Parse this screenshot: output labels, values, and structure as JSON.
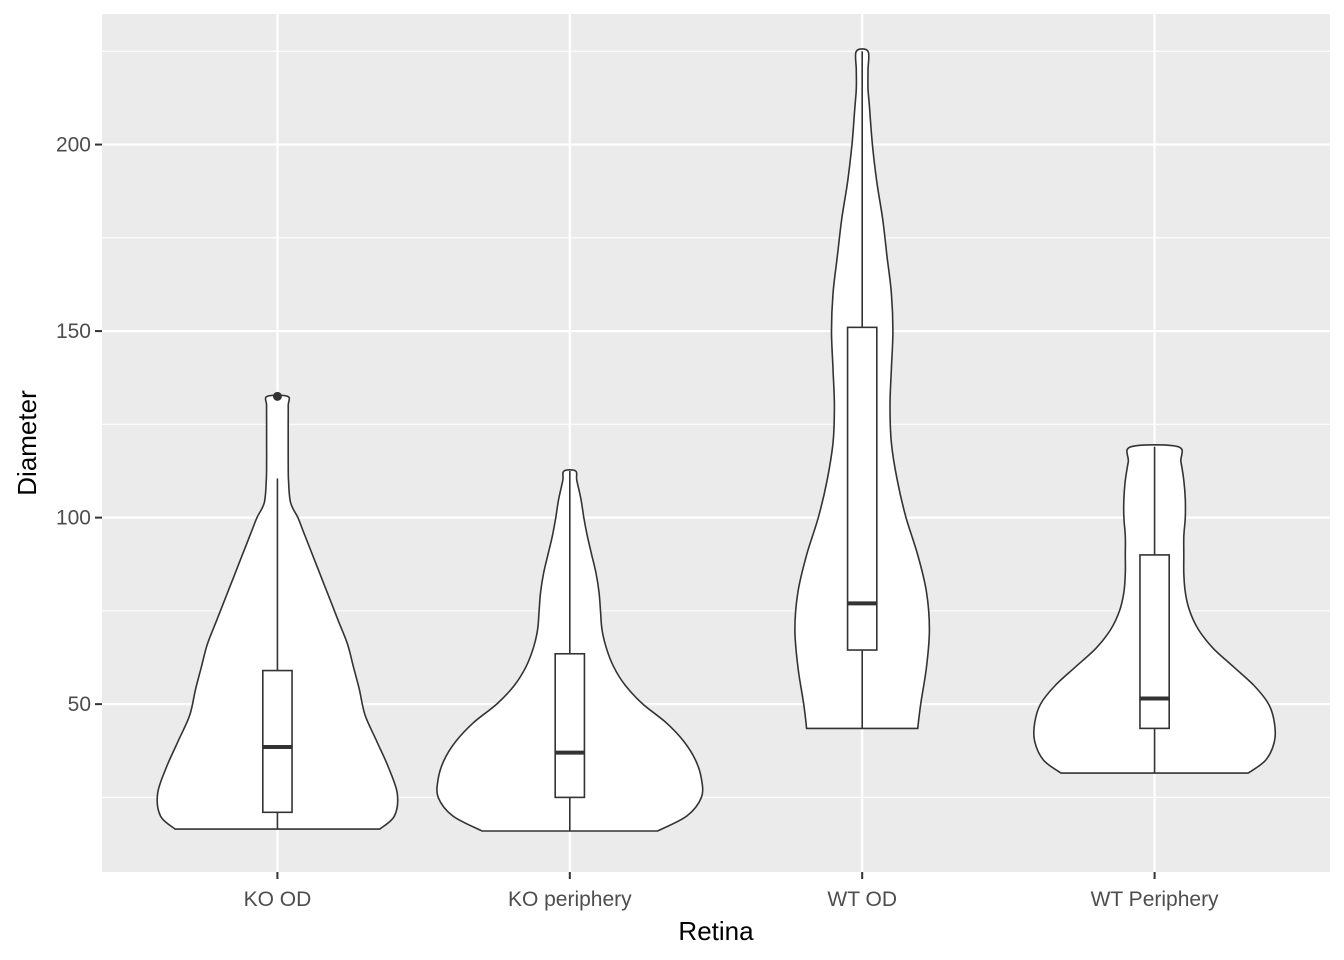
{
  "chart_data": {
    "type": "violin",
    "xlabel": "Retina",
    "ylabel": "Diameter",
    "categories": [
      "KO OD",
      "KO periphery",
      "WT OD",
      "WT Periphery"
    ],
    "ylim": [
      5,
      235
    ],
    "yticks": [
      50,
      100,
      150,
      200
    ],
    "ytick_labels": [
      "50",
      "100",
      "150",
      "200"
    ],
    "grid": true,
    "colors": {
      "panel": "#ebebeb",
      "grid": "#ffffff",
      "fill": "#ffffff",
      "stroke": "#333333"
    },
    "groups": [
      {
        "category": "KO OD",
        "box": {
          "q1": 21,
          "median": 38.5,
          "q3": 59,
          "whisker_low": 16.5,
          "whisker_high": 110.5
        },
        "outliers": [
          132.5
        ],
        "violin": {
          "y": [
            16.5,
            20,
            26,
            33,
            40,
            47,
            54,
            60,
            66,
            72,
            78,
            84,
            90,
            96,
            100,
            104,
            110,
            115,
            120,
            125,
            130,
            132.5
          ],
          "halfwidth": [
            0.35,
            0.4,
            0.41,
            0.38,
            0.34,
            0.3,
            0.28,
            0.26,
            0.24,
            0.21,
            0.18,
            0.15,
            0.12,
            0.09,
            0.07,
            0.045,
            0.038,
            0.037,
            0.037,
            0.037,
            0.037,
            0.035
          ]
        }
      },
      {
        "category": "KO periphery",
        "box": {
          "q1": 25,
          "median": 37,
          "q3": 63.5,
          "whisker_low": 16,
          "whisker_high": 112.5
        },
        "outliers": [],
        "violin": {
          "y": [
            16,
            20,
            25,
            30,
            35,
            40,
            45,
            50,
            55,
            60,
            65,
            70,
            75,
            80,
            85,
            90,
            95,
            100,
            105,
            110,
            112.5
          ],
          "halfwidth": [
            0.3,
            0.4,
            0.45,
            0.45,
            0.43,
            0.39,
            0.33,
            0.25,
            0.19,
            0.15,
            0.125,
            0.11,
            0.105,
            0.1,
            0.09,
            0.075,
            0.06,
            0.048,
            0.038,
            0.024,
            0.02
          ]
        }
      },
      {
        "category": "WT OD",
        "box": {
          "q1": 64.5,
          "median": 77,
          "q3": 151,
          "whisker_low": 43.5,
          "whisker_high": 225
        },
        "outliers": [],
        "violin": {
          "y": [
            43.5,
            50,
            60,
            70,
            80,
            90,
            100,
            110,
            120,
            130,
            140,
            150,
            160,
            170,
            180,
            190,
            200,
            210,
            215,
            220,
            225
          ],
          "halfwidth": [
            0.19,
            0.2,
            0.22,
            0.23,
            0.22,
            0.19,
            0.15,
            0.12,
            0.1,
            0.095,
            0.1,
            0.105,
            0.1,
            0.085,
            0.07,
            0.05,
            0.035,
            0.025,
            0.02,
            0.02,
            0.02
          ]
        }
      },
      {
        "category": "WT Periphery",
        "box": {
          "q1": 43.5,
          "median": 51.5,
          "q3": 90,
          "whisker_low": 31.5,
          "whisker_high": 119
        },
        "outliers": [],
        "violin": {
          "y": [
            31.5,
            35,
            40,
            45,
            50,
            55,
            60,
            65,
            70,
            75,
            80,
            85,
            90,
            95,
            100,
            105,
            110,
            115,
            119
          ],
          "halfwidth": [
            0.32,
            0.38,
            0.41,
            0.41,
            0.39,
            0.34,
            0.27,
            0.2,
            0.15,
            0.12,
            0.105,
            0.1,
            0.1,
            0.1,
            0.105,
            0.105,
            0.1,
            0.09,
            0.08
          ]
        }
      }
    ]
  }
}
